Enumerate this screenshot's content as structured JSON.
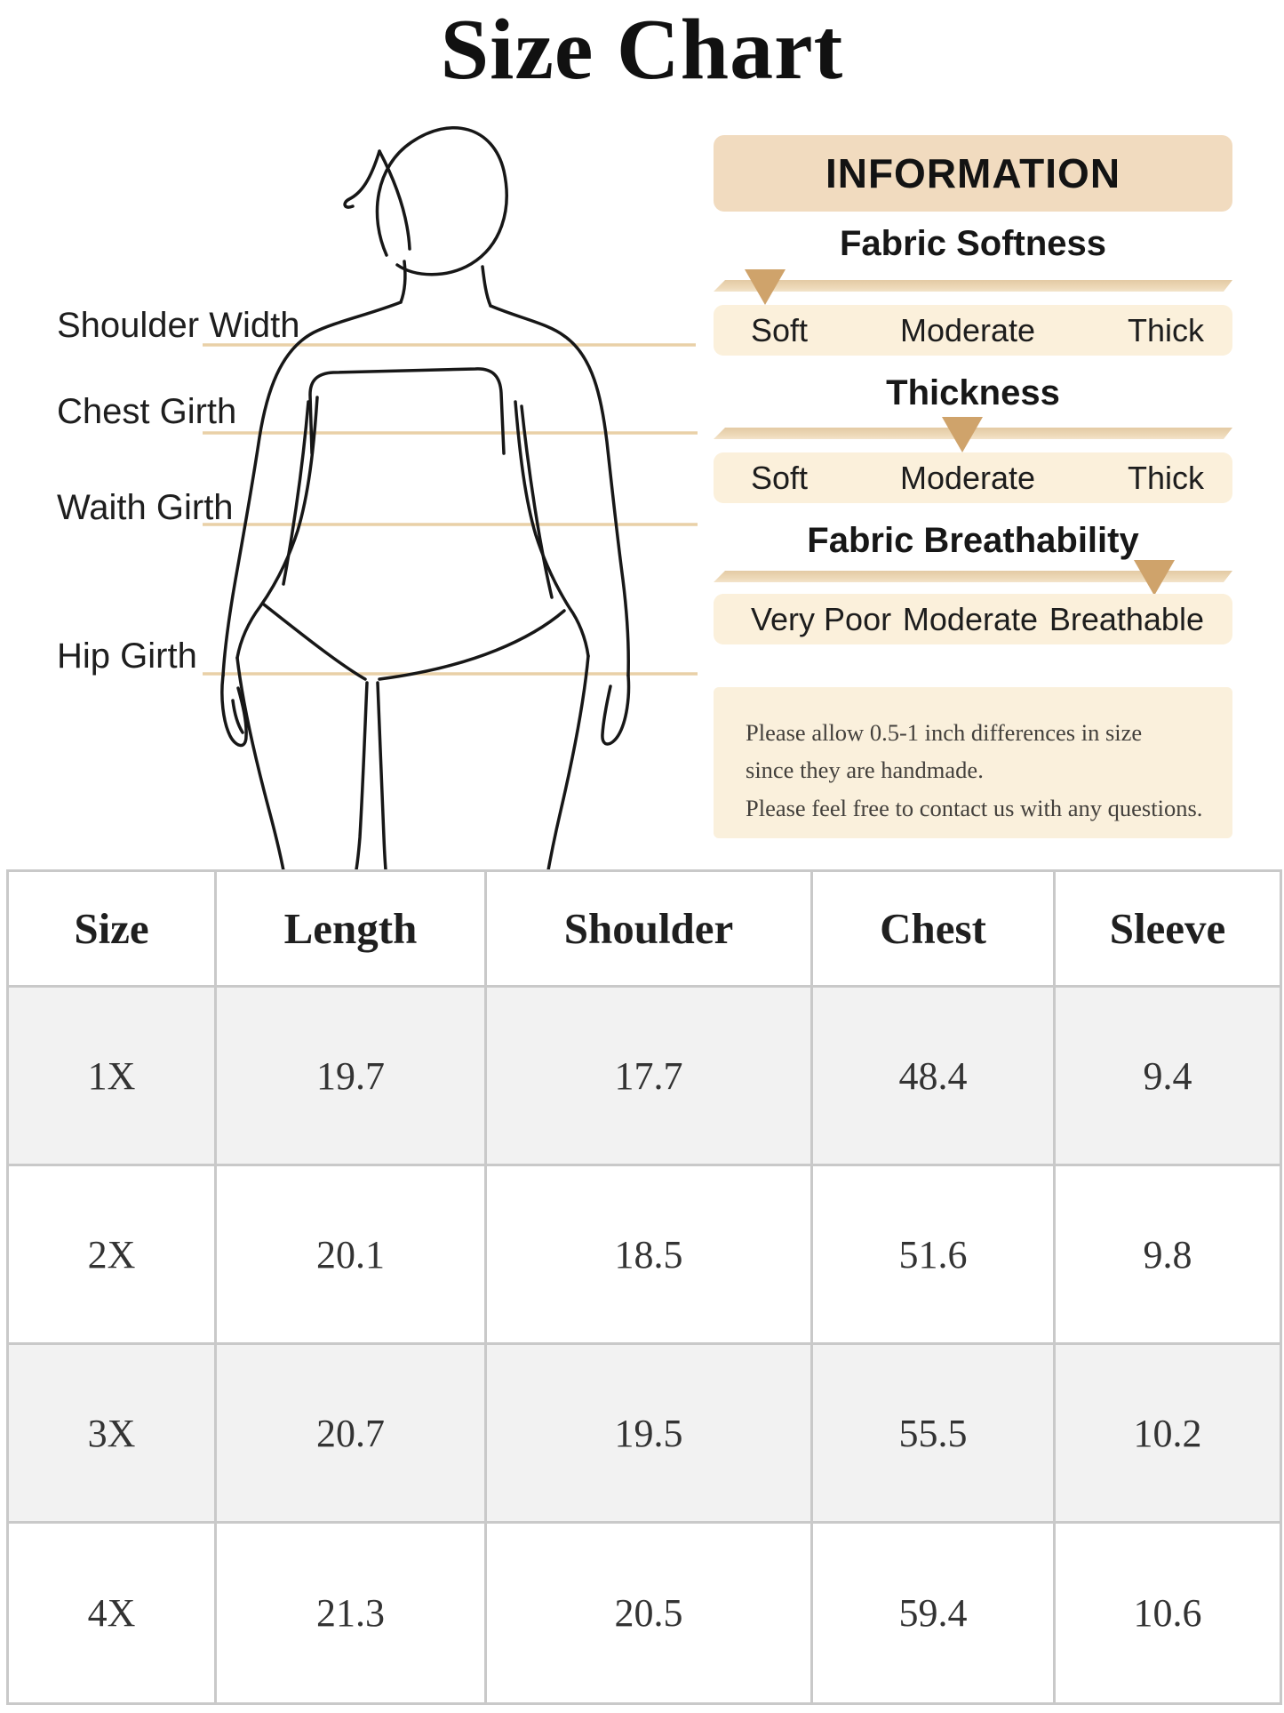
{
  "title": "Size Chart",
  "figure": {
    "labels": [
      "Shoulder Width",
      "Chest Girth",
      "Waith Girth",
      "Hip Girth"
    ]
  },
  "info": {
    "header": "INFORMATION",
    "sliders": [
      {
        "title": "Fabric Softness",
        "labels": [
          "Soft",
          "Moderate",
          "Thick"
        ],
        "marker_percent": 10
      },
      {
        "title": "Thickness",
        "labels": [
          "Soft",
          "Moderate",
          "Thick"
        ],
        "marker_percent": 48
      },
      {
        "title": "Fabric Breathability",
        "labels": [
          "Very Poor",
          "Moderate",
          "Breathable"
        ],
        "marker_percent": 85
      }
    ],
    "note_lines": [
      "Please allow 0.5-1 inch differences in size",
      "since they are handmade.",
      "Please feel free to contact us with any questions."
    ]
  },
  "table": {
    "headers": [
      "Size",
      "Length",
      "Shoulder",
      "Chest",
      "Sleeve"
    ],
    "rows": [
      [
        "1X",
        "19.7",
        "17.7",
        "48.4",
        "9.4"
      ],
      [
        "2X",
        "20.1",
        "18.5",
        "51.6",
        "9.8"
      ],
      [
        "3X",
        "20.7",
        "19.5",
        "55.5",
        "10.2"
      ],
      [
        "4X",
        "21.3",
        "20.5",
        "59.4",
        "10.6"
      ]
    ]
  },
  "colors": {
    "info_header_bg": "#f1dbbf",
    "slider_box_bg": "#fbf0db",
    "note_bg": "#faf0dc",
    "marker": "#cfa36b",
    "track": "#e9d3ae",
    "measure_line": "#e9d0a7",
    "table_grid": "#c9c9c9",
    "table_alt_row": "#f2f2f2"
  }
}
